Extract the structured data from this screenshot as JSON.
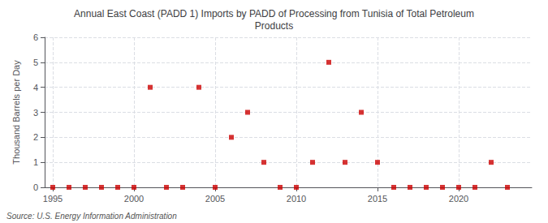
{
  "chart_data": {
    "type": "scatter",
    "title": "Annual East Coast (PADD 1) Imports by PADD of Processing from Tunisia of Total Petroleum\nProducts",
    "y_label": "Thousand Barrels per Day",
    "annotation": "Source: U.S. Energy Information Administration",
    "x": [
      1995,
      1996,
      1997,
      1998,
      1999,
      2000,
      2001,
      2002,
      2003,
      2004,
      2005,
      2006,
      2007,
      2008,
      2009,
      2010,
      2011,
      2012,
      2013,
      2014,
      2015,
      2016,
      2017,
      2018,
      2019,
      2020,
      2021,
      2022,
      2023
    ],
    "values": [
      0,
      0,
      0,
      0,
      0,
      0,
      4,
      0,
      0,
      4,
      0,
      2,
      3,
      1,
      0,
      0,
      1,
      5,
      1,
      3,
      1,
      0,
      0,
      0,
      0,
      0,
      0,
      1,
      0
    ],
    "color": "#cc0000",
    "marker": "square",
    "xlim": [
      1994.5,
      2024.5
    ],
    "xticks": [
      1995,
      2000,
      2005,
      2010,
      2015,
      2020
    ],
    "ylim": [
      0,
      6
    ],
    "yticks": [
      0,
      1,
      2,
      3,
      4,
      5,
      6
    ],
    "grid": true
  }
}
